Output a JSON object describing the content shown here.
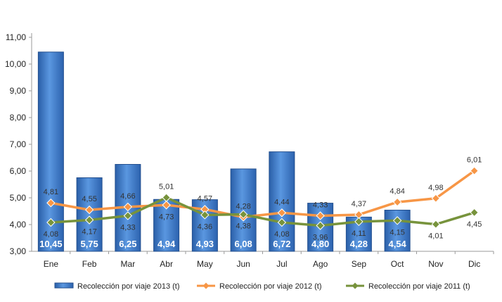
{
  "chart_data": {
    "type": "bar",
    "categories": [
      "Ene",
      "Feb",
      "Mar",
      "Abr",
      "May",
      "Jun",
      "Jul",
      "Ago",
      "Sep",
      "Oct",
      "Nov",
      "Dic"
    ],
    "y_ticks": [
      "3,00",
      "4,00",
      "5,00",
      "6,00",
      "7,00",
      "8,00",
      "9,00",
      "10,00",
      "11,00"
    ],
    "ylim": [
      3,
      11
    ],
    "grid": false,
    "legend_position": "bottom",
    "series": [
      {
        "name": "Recolección por viaje 2013 (t)",
        "type": "bar",
        "color": "#3f7fd0",
        "values": [
          10.45,
          5.75,
          6.25,
          4.94,
          4.93,
          6.08,
          6.72,
          4.8,
          4.28,
          4.54,
          null,
          null
        ],
        "labels": [
          "10,45",
          "5,75",
          "6,25",
          "4,94",
          "4,93",
          "6,08",
          "6,72",
          "4,80",
          "4,28",
          "4,54",
          "",
          ""
        ]
      },
      {
        "name": "Recolección por viaje 2012 (t)",
        "type": "line",
        "color": "#f79646",
        "values": [
          4.81,
          4.55,
          4.66,
          4.73,
          4.57,
          4.28,
          4.44,
          4.33,
          4.37,
          4.84,
          4.98,
          6.01
        ],
        "labels": [
          "4,81",
          "4,55",
          "4,66",
          "4,73",
          "4,57",
          "4,28",
          "4,44",
          "4,33",
          "4,37",
          "4,84",
          "4,98",
          "6,01"
        ]
      },
      {
        "name": "Recolección por viaje 2011 (t)",
        "type": "line",
        "color": "#77933c",
        "values": [
          4.08,
          4.17,
          4.33,
          5.01,
          4.36,
          4.38,
          4.08,
          3.96,
          4.11,
          4.15,
          4.01,
          4.45
        ],
        "labels": [
          "4,08",
          "4,17",
          "4,33",
          "5,01",
          "4,36",
          "4,38",
          "4,08",
          "3,96",
          "4,11",
          "4,15",
          "4,01",
          "4,45"
        ]
      }
    ]
  }
}
